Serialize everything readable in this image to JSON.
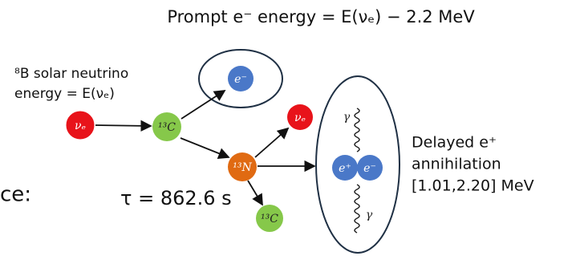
{
  "title": "Prompt e⁻ energy = E(νₑ) − 2.2 MeV",
  "partial_text": "ce:",
  "source": {
    "line1": "⁸B solar neutrino",
    "line2": "energy = E(νₑ)"
  },
  "lifetime": "τ = 862.6 s",
  "delayed": {
    "line1": "Delayed e⁺",
    "line2": "annihilation",
    "line3": "[1.01,2.20] MeV"
  },
  "nodes": [
    {
      "label": "νₑ"
    },
    {
      "label": "¹³C"
    },
    {
      "label": "e⁻"
    },
    {
      "label": "¹³N"
    },
    {
      "label": "νₑ"
    },
    {
      "label": "¹³C"
    },
    {
      "label": "e⁺"
    },
    {
      "label": "e⁻"
    }
  ],
  "gammas": [
    "γ",
    "γ"
  ]
}
